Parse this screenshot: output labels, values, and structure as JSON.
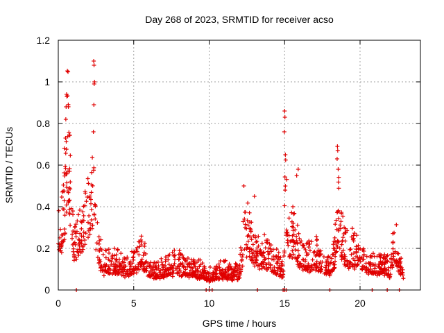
{
  "chart_data": {
    "type": "scatter",
    "title": "Day 268 of 2023, SRMTID for receiver acso",
    "xlabel": "GPS time / hours",
    "ylabel": "SRMTID / TECUs",
    "xlim": [
      0,
      24
    ],
    "ylim": [
      0,
      1.2
    ],
    "grid": true,
    "x_ticks": [
      0,
      5,
      10,
      15,
      20
    ],
    "x_tick_labels": [
      "0",
      "5",
      "10",
      "15",
      "20"
    ],
    "y_ticks": [
      0,
      0.2,
      0.4,
      0.6,
      0.8,
      1.0,
      1.2
    ],
    "y_tick_labels": [
      "0",
      "0.2",
      "0.4",
      "0.6",
      "0.8",
      "1",
      "1.2"
    ],
    "marker": "plus",
    "series_color": "#e00000",
    "envelope": {
      "x": [
        0.0,
        0.3,
        0.5,
        0.6,
        0.8,
        1.0,
        1.2,
        1.5,
        1.8,
        2.0,
        2.2,
        2.4,
        2.5,
        2.7,
        3.0,
        3.5,
        4.0,
        4.5,
        5.0,
        5.5,
        6.0,
        6.5,
        7.0,
        7.5,
        8.0,
        8.5,
        9.0,
        9.5,
        9.8,
        10.0,
        10.5,
        11.0,
        11.5,
        12.0,
        12.3,
        12.6,
        13.0,
        13.5,
        14.0,
        14.5,
        14.9,
        15.05,
        15.3,
        15.6,
        16.0,
        16.5,
        17.0,
        17.5,
        18.0,
        18.3,
        18.6,
        18.8,
        19.2,
        19.6,
        20.0,
        20.5,
        21.0,
        21.5,
        22.0,
        22.3,
        22.6,
        22.9
      ],
      "y": [
        0.3,
        0.4,
        0.65,
        0.9,
        0.55,
        0.3,
        0.25,
        0.35,
        0.45,
        0.5,
        0.45,
        0.7,
        0.35,
        0.22,
        0.15,
        0.17,
        0.15,
        0.13,
        0.15,
        0.22,
        0.12,
        0.1,
        0.12,
        0.14,
        0.15,
        0.13,
        0.12,
        0.11,
        0.09,
        0.08,
        0.1,
        0.11,
        0.1,
        0.1,
        0.3,
        0.35,
        0.2,
        0.22,
        0.2,
        0.15,
        0.12,
        0.55,
        0.28,
        0.35,
        0.2,
        0.18,
        0.2,
        0.17,
        0.14,
        0.2,
        0.45,
        0.28,
        0.22,
        0.22,
        0.18,
        0.15,
        0.14,
        0.15,
        0.12,
        0.3,
        0.15,
        0.1
      ]
    },
    "outliers": [
      {
        "x": 0.55,
        "y": 0.94
      },
      {
        "x": 0.57,
        "y": 0.93
      },
      {
        "x": 0.52,
        "y": 0.88
      },
      {
        "x": 0.5,
        "y": 0.82
      },
      {
        "x": 0.48,
        "y": 0.73
      },
      {
        "x": 0.4,
        "y": 0.68
      },
      {
        "x": 2.35,
        "y": 1.1
      },
      {
        "x": 2.37,
        "y": 1.08
      },
      {
        "x": 2.4,
        "y": 1.0
      },
      {
        "x": 2.38,
        "y": 0.99
      },
      {
        "x": 2.36,
        "y": 0.89
      },
      {
        "x": 2.33,
        "y": 0.76
      },
      {
        "x": 15.0,
        "y": 0.86
      },
      {
        "x": 15.02,
        "y": 0.83
      },
      {
        "x": 14.98,
        "y": 0.76
      },
      {
        "x": 15.05,
        "y": 0.65
      },
      {
        "x": 18.5,
        "y": 0.69
      },
      {
        "x": 18.52,
        "y": 0.67
      },
      {
        "x": 18.48,
        "y": 0.63
      },
      {
        "x": 18.55,
        "y": 0.58
      },
      {
        "x": 12.3,
        "y": 0.5
      },
      {
        "x": 13.0,
        "y": 0.45
      },
      {
        "x": 15.9,
        "y": 0.58
      },
      {
        "x": 15.8,
        "y": 0.55
      }
    ],
    "zero_points_x": [
      1.2,
      9.8,
      10.0,
      10.2,
      13.2,
      14.9,
      15.0,
      15.1,
      18.0,
      20.8,
      21.8,
      22.6
    ]
  }
}
